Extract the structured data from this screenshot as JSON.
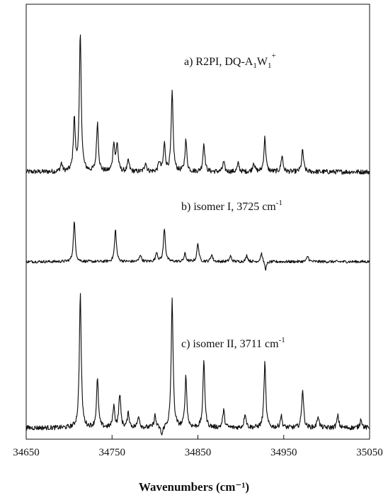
{
  "chart_data": {
    "type": "line",
    "xlabel": "Wavenumbers (cm⁻¹)",
    "xlim": [
      34650,
      35050
    ],
    "xticks": [
      34650,
      34750,
      34850,
      34950,
      35050
    ],
    "grid": false,
    "panels": [
      {
        "label": {
          "prefix": "a) R2PI, DQ-A",
          "sub1": "1",
          "mid": "W",
          "sub2": "1",
          "sup": "+"
        },
        "peaks": [
          [
            34691,
            0.06
          ],
          [
            34706,
            0.38
          ],
          [
            34713,
            1.0
          ],
          [
            34733,
            0.36
          ],
          [
            34752,
            0.21
          ],
          [
            34756,
            0.2
          ],
          [
            34769,
            0.08
          ],
          [
            34789,
            0.07
          ],
          [
            34805,
            0.07
          ],
          [
            34811,
            0.2
          ],
          [
            34820,
            0.58
          ],
          [
            34836,
            0.23
          ],
          [
            34857,
            0.21
          ],
          [
            34880,
            0.07
          ],
          [
            34897,
            0.06
          ],
          [
            34915,
            0.07
          ],
          [
            34928,
            0.25
          ],
          [
            34948,
            0.12
          ],
          [
            34972,
            0.16
          ]
        ]
      },
      {
        "label": {
          "text": "b) isomer I, 3725 cm",
          "sup": "-1"
        },
        "peaks": [
          [
            34706,
            0.5
          ],
          [
            34754,
            0.4
          ],
          [
            34783,
            0.09
          ],
          [
            34802,
            0.12
          ],
          [
            34811,
            0.42
          ],
          [
            34835,
            0.1
          ],
          [
            34850,
            0.23
          ],
          [
            34866,
            0.09
          ],
          [
            34888,
            0.07
          ],
          [
            34907,
            0.08
          ],
          [
            34924,
            0.11
          ],
          [
            34929,
            -0.1
          ],
          [
            34978,
            0.07
          ]
        ]
      },
      {
        "label": {
          "text": "c) isomer II, 3711 cm",
          "sup": "-1"
        },
        "peaks": [
          [
            34713,
            1.0
          ],
          [
            34733,
            0.36
          ],
          [
            34752,
            0.16
          ],
          [
            34759,
            0.25
          ],
          [
            34769,
            0.11
          ],
          [
            34781,
            0.09
          ],
          [
            34800,
            0.09
          ],
          [
            34808,
            -0.07
          ],
          [
            34820,
            0.96
          ],
          [
            34836,
            0.38
          ],
          [
            34857,
            0.5
          ],
          [
            34880,
            0.13
          ],
          [
            34905,
            0.11
          ],
          [
            34928,
            0.48
          ],
          [
            34947,
            0.09
          ],
          [
            34972,
            0.29
          ],
          [
            34990,
            0.09
          ],
          [
            35013,
            0.09
          ],
          [
            35040,
            0.07
          ]
        ]
      }
    ]
  }
}
